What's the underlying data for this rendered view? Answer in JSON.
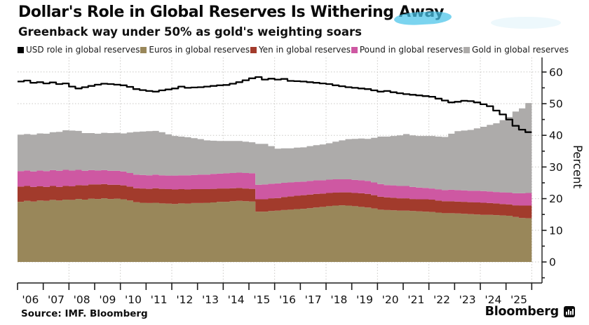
{
  "header": {
    "title_prefix": "Dollar's Role in Global Reserves Is Withering ",
    "title_highlight": "Away",
    "subtitle": "Greenback way under 50% as gold's weighting soars"
  },
  "legend": [
    {
      "label": "USD role in global reserves",
      "color": "#000000"
    },
    {
      "label": "Euros in global reserves",
      "color": "#99875A"
    },
    {
      "label": "Yen in global reserves",
      "color": "#A23B2C"
    },
    {
      "label": "Pound in global reserves",
      "color": "#CE58A2"
    },
    {
      "label": "Gold in global reserves",
      "color": "#ADABAA"
    }
  ],
  "footer": {
    "source": "Source: IMF. Bloomberg",
    "brand": "Bloomberg"
  },
  "chart_data": {
    "type": "area",
    "stacked": true,
    "title": "Dollar's Role in Global Reserves Is Withering Away",
    "subtitle": "Greenback way under 50% as gold's weighting soars",
    "xlabel": "",
    "ylabel": "Percent",
    "x_start": 2006,
    "x_step": 0.25,
    "x_tick_labels": [
      "'06",
      "'07",
      "'08",
      "'09",
      "'10",
      "'11",
      "'12",
      "'13",
      "'14",
      "'15",
      "'16",
      "'17",
      "'18",
      "'19",
      "'20",
      "'21",
      "'22",
      "'23",
      "'24",
      "'25"
    ],
    "y_ticks": [
      0,
      10,
      20,
      30,
      40,
      50,
      60
    ],
    "y_minor_step": 5,
    "ylim": [
      -6.5,
      64.5
    ],
    "grid": "dotted, horizontal every 10, vertical every 2 years",
    "legend_position": "top",
    "series": [
      {
        "name": "Euros in global reserves",
        "type": "area",
        "color": "#99875A",
        "values": [
          19.0,
          19.3,
          19.1,
          19.4,
          19.3,
          19.6,
          19.4,
          19.7,
          19.6,
          19.9,
          19.7,
          20.0,
          19.9,
          20.1,
          19.9,
          20.0,
          19.8,
          19.4,
          18.9,
          18.7,
          18.6,
          18.7,
          18.5,
          18.4,
          18.3,
          18.5,
          18.4,
          18.6,
          18.6,
          18.7,
          18.8,
          19.0,
          19.0,
          19.2,
          19.3,
          19.2,
          19.1,
          15.9,
          15.9,
          16.1,
          16.2,
          16.4,
          16.5,
          16.7,
          16.8,
          17.0,
          17.2,
          17.4,
          17.6,
          17.8,
          17.9,
          17.8,
          17.6,
          17.4,
          17.2,
          16.9,
          16.5,
          16.4,
          16.3,
          16.2,
          16.2,
          16.1,
          16.0,
          15.9,
          15.8,
          15.6,
          15.4,
          15.4,
          15.3,
          15.2,
          15.1,
          15.0,
          14.9,
          14.9,
          14.8,
          14.7,
          14.6,
          14.2,
          13.9,
          13.8
        ]
      },
      {
        "name": "Yen in global reserves",
        "type": "area",
        "color": "#A23B2C",
        "values": [
          4.8,
          4.7,
          4.6,
          4.5,
          4.4,
          4.4,
          4.3,
          4.3,
          4.3,
          4.4,
          4.5,
          4.5,
          4.6,
          4.5,
          4.5,
          4.4,
          4.4,
          4.4,
          4.4,
          4.5,
          4.5,
          4.6,
          4.6,
          4.6,
          4.6,
          4.5,
          4.5,
          4.4,
          4.4,
          4.3,
          4.3,
          4.2,
          4.2,
          4.1,
          4.1,
          4.0,
          4.0,
          3.9,
          3.9,
          4.0,
          4.0,
          4.1,
          4.2,
          4.2,
          4.3,
          4.3,
          4.3,
          4.2,
          4.2,
          4.1,
          4.1,
          4.2,
          4.2,
          4.3,
          4.3,
          4.2,
          4.1,
          4.0,
          4.0,
          3.9,
          3.9,
          3.8,
          3.8,
          3.9,
          3.9,
          3.8,
          3.8,
          3.8,
          3.8,
          3.8,
          3.8,
          3.8,
          3.8,
          3.7,
          3.7,
          3.6,
          3.6,
          3.7,
          3.9,
          4.0
        ]
      },
      {
        "name": "Pound in global reserves",
        "type": "area",
        "color": "#CE58A2",
        "values": [
          4.9,
          4.9,
          4.9,
          5.0,
          5.0,
          5.0,
          5.1,
          5.1,
          5.0,
          4.8,
          4.6,
          4.5,
          4.4,
          4.4,
          4.4,
          4.4,
          4.4,
          4.3,
          4.3,
          4.3,
          4.3,
          4.3,
          4.3,
          4.3,
          4.4,
          4.4,
          4.5,
          4.5,
          4.6,
          4.6,
          4.7,
          4.7,
          4.8,
          4.8,
          4.8,
          4.9,
          4.9,
          4.6,
          4.7,
          4.6,
          4.6,
          4.5,
          4.4,
          4.4,
          4.3,
          4.3,
          4.3,
          4.2,
          4.2,
          4.2,
          4.1,
          4.1,
          4.1,
          4.1,
          4.1,
          4.0,
          4.0,
          3.9,
          3.9,
          3.9,
          3.9,
          3.8,
          3.7,
          3.6,
          3.5,
          3.5,
          3.5,
          3.6,
          3.6,
          3.6,
          3.6,
          3.7,
          3.7,
          3.7,
          3.6,
          3.7,
          3.7,
          3.8,
          3.9,
          4.0
        ]
      },
      {
        "name": "Gold in global reserves",
        "type": "area",
        "color": "#ADABAA",
        "values": [
          11.5,
          11.5,
          11.6,
          11.7,
          11.8,
          12.0,
          12.3,
          12.5,
          12.6,
          12.3,
          11.9,
          11.7,
          11.6,
          11.8,
          11.9,
          12.0,
          12.0,
          12.8,
          13.5,
          13.7,
          13.9,
          13.8,
          13.6,
          13.0,
          12.5,
          12.2,
          12.0,
          11.6,
          11.2,
          10.8,
          10.5,
          10.3,
          10.2,
          10.1,
          10.0,
          9.9,
          9.8,
          12.9,
          12.8,
          11.9,
          11.0,
          10.9,
          10.8,
          10.8,
          10.8,
          11.0,
          11.1,
          11.3,
          11.5,
          11.9,
          12.3,
          12.7,
          13.0,
          13.2,
          13.3,
          14.1,
          15.0,
          15.3,
          15.6,
          16.0,
          16.4,
          16.3,
          16.3,
          16.4,
          16.6,
          16.7,
          16.8,
          17.7,
          18.6,
          18.9,
          19.2,
          19.7,
          20.3,
          21.0,
          21.7,
          22.8,
          23.9,
          25.8,
          26.8,
          28.4
        ]
      },
      {
        "name": "USD role in global reserves",
        "type": "line",
        "color": "#000000",
        "values": [
          57.0,
          57.3,
          56.6,
          56.8,
          56.4,
          56.7,
          56.2,
          56.4,
          55.4,
          54.8,
          55.2,
          55.6,
          56.0,
          56.3,
          56.2,
          56.0,
          55.8,
          55.3,
          54.6,
          54.3,
          54.0,
          53.8,
          54.2,
          54.5,
          54.8,
          55.4,
          55.0,
          55.1,
          55.2,
          55.4,
          55.6,
          55.8,
          55.9,
          56.3,
          56.8,
          57.4,
          58.0,
          58.4,
          57.6,
          57.9,
          57.6,
          57.8,
          57.2,
          57.1,
          57.0,
          56.8,
          56.6,
          56.4,
          56.2,
          55.8,
          55.5,
          55.2,
          55.0,
          54.8,
          54.6,
          54.2,
          53.8,
          54.0,
          53.6,
          53.3,
          53.0,
          52.8,
          52.6,
          52.4,
          52.2,
          51.6,
          51.0,
          50.4,
          50.6,
          50.9,
          50.8,
          50.4,
          49.8,
          49.2,
          47.8,
          46.6,
          45.0,
          43.0,
          41.8,
          41.0
        ]
      }
    ]
  }
}
